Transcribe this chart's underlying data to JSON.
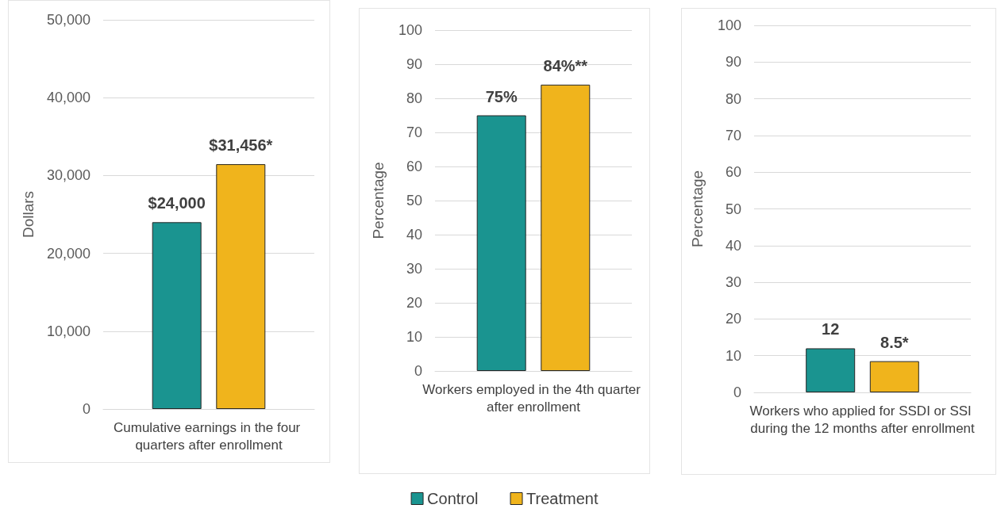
{
  "chart_data": [
    {
      "type": "bar",
      "ylabel": "Dollars",
      "categories": [
        "Cumulative earnings in the four quarters after enrollment"
      ],
      "ylim": [
        0,
        50000
      ],
      "yticks": [
        0,
        {
          "value": 10000,
          "label": "10,000"
        },
        {
          "value": 20000,
          "label": "20,000"
        },
        {
          "value": 30000,
          "label": "30,000"
        },
        {
          "value": 40000,
          "label": "40,000"
        },
        {
          "value": 50000,
          "label": "50,000"
        }
      ],
      "grid": "y",
      "legend": false,
      "series": [
        {
          "color": "#1a9490",
          "values": [
            24000
          ],
          "value_labels": [
            "$24,000"
          ]
        },
        {
          "color": "#f0b41c",
          "values": [
            31456
          ],
          "value_labels": [
            "$31,456*"
          ]
        }
      ]
    },
    {
      "type": "bar",
      "ylabel": "Percentage",
      "categories": [
        "Workers employed in the 4th quarter after enrollment"
      ],
      "ylim": [
        0,
        100
      ],
      "yticks": [
        0,
        10,
        20,
        30,
        40,
        50,
        60,
        70,
        80,
        90,
        100
      ],
      "grid": "y",
      "legend": "bottom",
      "series": [
        {
          "name": "Control",
          "color": "#1a9490",
          "values": [
            75
          ],
          "value_labels": [
            "75%"
          ]
        },
        {
          "name": "Treatment",
          "color": "#f0b41c",
          "values": [
            84
          ],
          "value_labels": [
            "84%**"
          ]
        }
      ]
    },
    {
      "type": "bar",
      "ylabel": "Percentage",
      "categories": [
        "Workers who applied for SSDI or SSI during the 12 months after enrollment"
      ],
      "ylim": [
        0,
        100
      ],
      "yticks": [
        0,
        10,
        20,
        30,
        40,
        50,
        60,
        70,
        80,
        90,
        100
      ],
      "grid": "y",
      "legend": false,
      "series": [
        {
          "color": "#1a9490",
          "values": [
            12
          ],
          "value_labels": [
            "12"
          ]
        },
        {
          "color": "#f0b41c",
          "values": [
            8.5
          ],
          "value_labels": [
            "8.5*"
          ]
        }
      ]
    }
  ]
}
